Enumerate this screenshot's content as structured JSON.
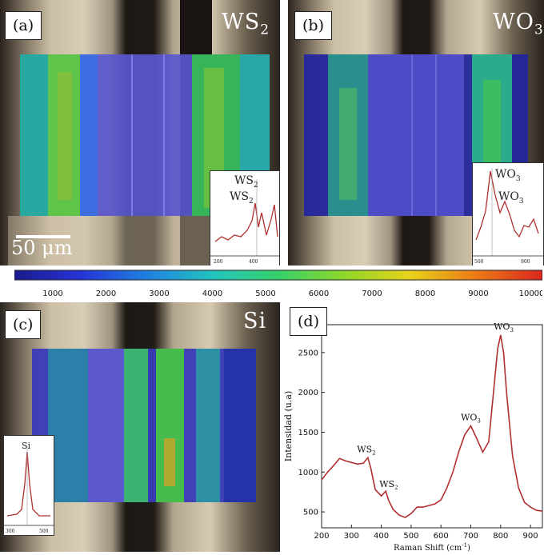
{
  "colormap": {
    "ticks": [
      "1000",
      "2000",
      "3000",
      "4000",
      "5000",
      "6000",
      "7000",
      "8000",
      "9000",
      "10000"
    ],
    "stops": [
      "#1a1a8c",
      "#2733d6",
      "#1f7fe0",
      "#23c4c0",
      "#35d16a",
      "#8fd628",
      "#e8d21a",
      "#ec7a18",
      "#d9261c"
    ]
  },
  "panels": {
    "a": {
      "label": "(a)",
      "title_main": "WS",
      "title_sub": "2",
      "scalebar": "50 μm",
      "inset_peaks": [
        {
          "text": "WS",
          "sub": "2"
        },
        {
          "text": "WS",
          "sub": "2"
        }
      ],
      "inset_ticks": [
        "200",
        "400"
      ]
    },
    "b": {
      "label": "(b)",
      "title_main": "WO",
      "title_sub": "3",
      "inset_peaks": [
        {
          "text": "WO",
          "sub": "3"
        },
        {
          "text": "WO",
          "sub": "3"
        }
      ],
      "inset_ticks": [
        "500",
        "900"
      ]
    },
    "c": {
      "label": "(c)",
      "title_main": "Si",
      "title_sub": "",
      "inset_peaks": [
        {
          "text": "Si",
          "sub": ""
        }
      ],
      "inset_ticks": [
        "300",
        "500"
      ]
    },
    "d": {
      "label": "(d)"
    }
  },
  "chart_data": {
    "type": "line",
    "xlabel": "Raman Shift (cm",
    "xlabel_sup": "-1",
    "xlabel_end": ")",
    "ylabel": "Intensidad (u.a)",
    "xlim": [
      200,
      940
    ],
    "ylim": [
      300,
      2850
    ],
    "xticks": [
      200,
      300,
      400,
      500,
      600,
      700,
      800,
      900
    ],
    "yticks": [
      500,
      1000,
      1500,
      2000,
      2500
    ],
    "color": "#b03030",
    "x": [
      200,
      220,
      240,
      260,
      280,
      300,
      320,
      340,
      355,
      365,
      380,
      400,
      415,
      425,
      440,
      460,
      480,
      500,
      520,
      540,
      560,
      580,
      600,
      620,
      640,
      660,
      680,
      700,
      720,
      740,
      760,
      780,
      790,
      800,
      810,
      820,
      840,
      860,
      880,
      900,
      920,
      940
    ],
    "y": [
      900,
      1000,
      1080,
      1170,
      1140,
      1120,
      1100,
      1110,
      1180,
      1050,
      780,
      700,
      760,
      640,
      530,
      460,
      430,
      480,
      560,
      560,
      580,
      600,
      650,
      800,
      1000,
      1260,
      1470,
      1580,
      1420,
      1250,
      1380,
      2150,
      2550,
      2720,
      2500,
      2000,
      1200,
      800,
      620,
      560,
      520,
      510
    ],
    "annotations": [
      {
        "text": "WS",
        "sub": "2",
        "x": 350,
        "y": 1250
      },
      {
        "text": "WS",
        "sub": "2",
        "x": 425,
        "y": 810
      },
      {
        "text": "WO",
        "sub": "3",
        "x": 700,
        "y": 1650
      },
      {
        "text": "WO",
        "sub": "3",
        "x": 810,
        "y": 2790
      }
    ]
  }
}
